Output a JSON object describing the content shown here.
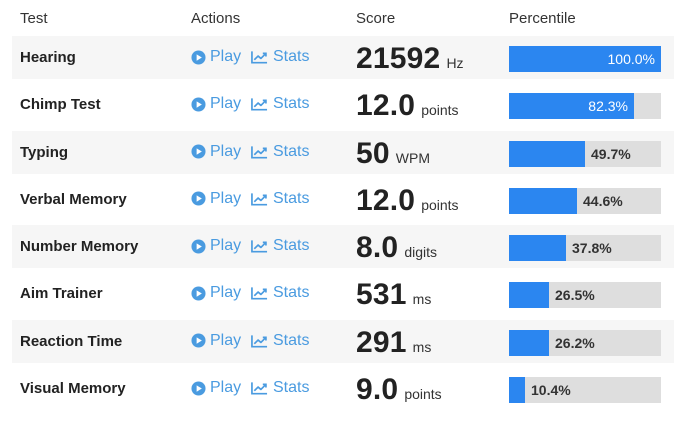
{
  "header": {
    "test": "Test",
    "actions": "Actions",
    "score": "Score",
    "percentile": "Percentile"
  },
  "colors": {
    "accent": "#2b86f0",
    "link": "#4a9be0",
    "bar_track": "#dedede"
  },
  "actions": {
    "play_label": "Play",
    "stats_label": "Stats",
    "play_icon": "play-circle-icon",
    "stats_icon": "line-chart-icon"
  },
  "rows": [
    {
      "name": "Hearing",
      "score": "21592",
      "unit": "Hz",
      "percentile": 100.0,
      "percentile_label": "100.0%"
    },
    {
      "name": "Chimp Test",
      "score": "12.0",
      "unit": "points",
      "percentile": 82.3,
      "percentile_label": "82.3%"
    },
    {
      "name": "Typing",
      "score": "50",
      "unit": "WPM",
      "percentile": 49.7,
      "percentile_label": "49.7%"
    },
    {
      "name": "Verbal Memory",
      "score": "12.0",
      "unit": "points",
      "percentile": 44.6,
      "percentile_label": "44.6%"
    },
    {
      "name": "Number Memory",
      "score": "8.0",
      "unit": "digits",
      "percentile": 37.8,
      "percentile_label": "37.8%"
    },
    {
      "name": "Aim Trainer",
      "score": "531",
      "unit": "ms",
      "percentile": 26.5,
      "percentile_label": "26.5%"
    },
    {
      "name": "Reaction Time",
      "score": "291",
      "unit": "ms",
      "percentile": 26.2,
      "percentile_label": "26.2%"
    },
    {
      "name": "Visual Memory",
      "score": "9.0",
      "unit": "points",
      "percentile": 10.4,
      "percentile_label": "10.4%"
    }
  ]
}
